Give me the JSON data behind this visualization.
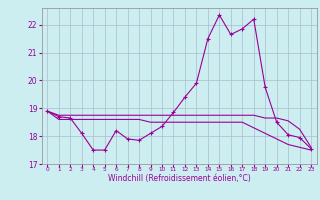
{
  "hours": [
    0,
    1,
    2,
    3,
    4,
    5,
    6,
    7,
    8,
    9,
    10,
    11,
    12,
    13,
    14,
    15,
    16,
    17,
    18,
    19,
    20,
    21,
    22,
    23
  ],
  "temp_line": [
    18.9,
    18.7,
    18.65,
    18.1,
    17.5,
    17.5,
    18.2,
    17.9,
    17.85,
    18.1,
    18.35,
    18.85,
    19.4,
    19.9,
    21.5,
    22.35,
    21.65,
    21.85,
    22.2,
    19.75,
    18.5,
    18.05,
    17.95,
    17.55
  ],
  "upper_flat": [
    18.9,
    18.75,
    18.75,
    18.75,
    18.75,
    18.75,
    18.75,
    18.75,
    18.75,
    18.75,
    18.75,
    18.75,
    18.75,
    18.75,
    18.75,
    18.75,
    18.75,
    18.75,
    18.75,
    18.65,
    18.65,
    18.55,
    18.25,
    17.6
  ],
  "lower_flat": [
    18.9,
    18.6,
    18.6,
    18.6,
    18.6,
    18.6,
    18.6,
    18.6,
    18.6,
    18.5,
    18.5,
    18.5,
    18.5,
    18.5,
    18.5,
    18.5,
    18.5,
    18.5,
    18.3,
    18.1,
    17.9,
    17.7,
    17.6,
    17.5
  ],
  "line_color": "#990099",
  "bg_color": "#cceef0",
  "grid_color": "#aabbcc",
  "xlabel": "Windchill (Refroidissement éolien,°C)",
  "ylim": [
    17.0,
    22.6
  ],
  "xlim": [
    -0.5,
    23.5
  ],
  "yticks": [
    17,
    18,
    19,
    20,
    21,
    22
  ],
  "xticks": [
    0,
    1,
    2,
    3,
    4,
    5,
    6,
    7,
    8,
    9,
    10,
    11,
    12,
    13,
    14,
    15,
    16,
    17,
    18,
    19,
    20,
    21,
    22,
    23
  ],
  "marker": "+"
}
